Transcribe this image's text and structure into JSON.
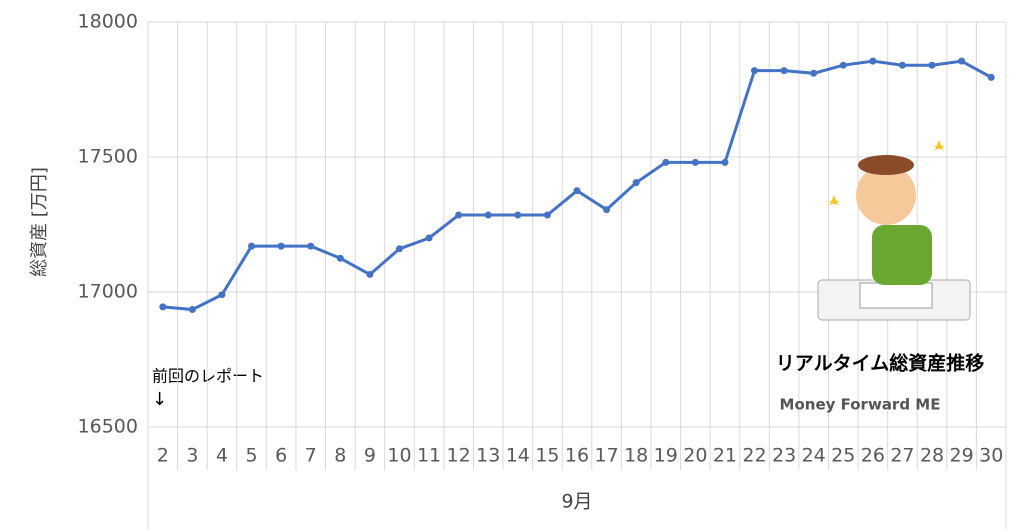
{
  "chart_data": {
    "type": "line",
    "y_axis_label": "総資産 [万円]",
    "x_axis_label": "9月",
    "categories": [
      "2",
      "3",
      "4",
      "5",
      "6",
      "7",
      "8",
      "9",
      "10",
      "11",
      "12",
      "13",
      "14",
      "15",
      "16",
      "17",
      "18",
      "19",
      "20",
      "21",
      "22",
      "23",
      "24",
      "25",
      "26",
      "27",
      "28",
      "29",
      "30"
    ],
    "series": [
      {
        "name": "総資産",
        "color": "#4472c4",
        "values": [
          16945,
          16935,
          16990,
          17170,
          17170,
          17170,
          17125,
          17065,
          17160,
          17200,
          17285,
          17285,
          17285,
          17285,
          17375,
          17305,
          17405,
          17480,
          17480,
          17480,
          17820,
          17820,
          17810,
          17840,
          17855,
          17840,
          17840,
          17855,
          17795
        ]
      }
    ],
    "ylim": [
      16500,
      18000
    ],
    "yticks": [
      16500,
      17000,
      17500,
      18000
    ],
    "grid": true,
    "annotations": [
      "前回のレポート",
      "↓",
      "リアルタイム総資産推移",
      "Money Forward ME"
    ]
  }
}
